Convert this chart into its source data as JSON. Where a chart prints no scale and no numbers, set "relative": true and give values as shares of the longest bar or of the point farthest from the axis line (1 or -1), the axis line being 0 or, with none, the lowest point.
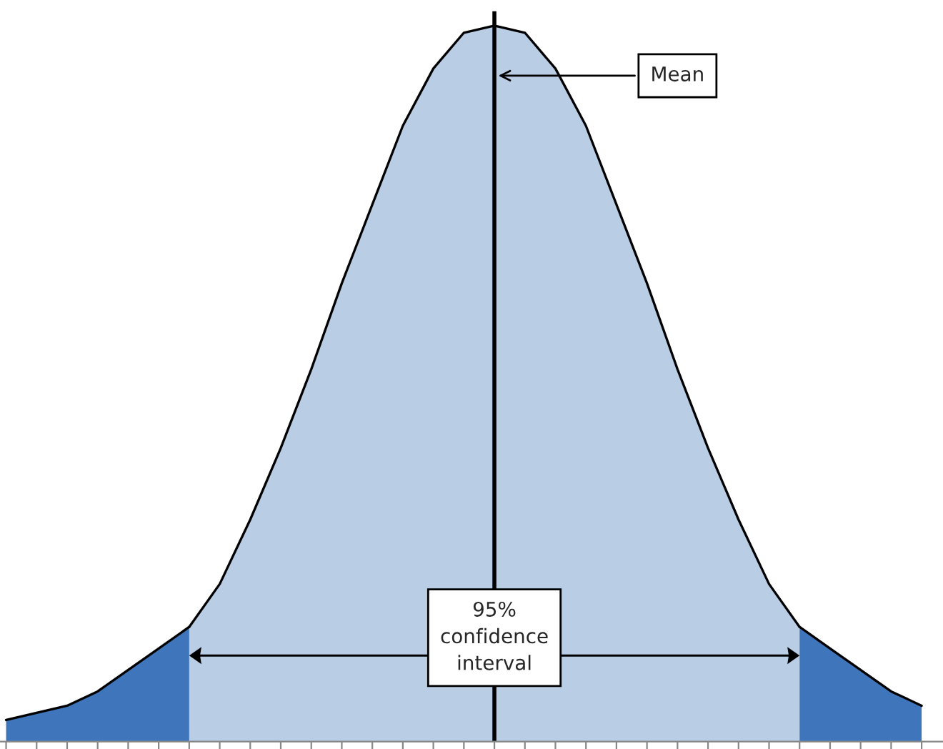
{
  "chart_data": {
    "type": "area",
    "relative": true,
    "grid": false,
    "legend": false,
    "categories": [
      null,
      null,
      null,
      null,
      null,
      null,
      null,
      null,
      null,
      null,
      null,
      null,
      null,
      null,
      null,
      null,
      null,
      null,
      null,
      null,
      null,
      null,
      null,
      null,
      null,
      null,
      null,
      null,
      null,
      null,
      null
    ],
    "series": [
      {
        "color": "#b9cde5",
        "values": [
          null,
          null,
          null,
          null,
          null,
          null,
          0.16,
          0.22,
          0.31,
          0.41,
          0.52,
          0.64,
          0.75,
          0.86,
          0.94,
          0.99,
          1.0,
          0.99,
          0.94,
          0.86,
          0.75,
          0.64,
          0.52,
          0.41,
          0.31,
          0.22,
          0.16,
          null,
          null,
          null,
          null
        ]
      },
      {
        "color": "#3f76bb",
        "values": [
          0.03,
          0.04,
          0.05,
          0.07,
          0.1,
          0.13,
          0.16,
          null,
          null,
          null,
          null,
          null,
          null,
          null,
          null,
          null,
          null,
          null,
          null,
          null,
          null,
          null,
          null,
          null,
          null,
          null,
          null,
          null,
          null,
          null,
          null
        ]
      },
      {
        "color": "#3f76bb",
        "values": [
          null,
          null,
          null,
          null,
          null,
          null,
          null,
          null,
          null,
          null,
          null,
          null,
          null,
          null,
          null,
          null,
          null,
          null,
          null,
          null,
          null,
          null,
          null,
          null,
          null,
          null,
          0.16,
          0.13,
          0.1,
          0.07,
          0.05
        ]
      }
    ],
    "annotations": [
      "Mean",
      "95%\nconfidence\ninterval"
    ]
  }
}
